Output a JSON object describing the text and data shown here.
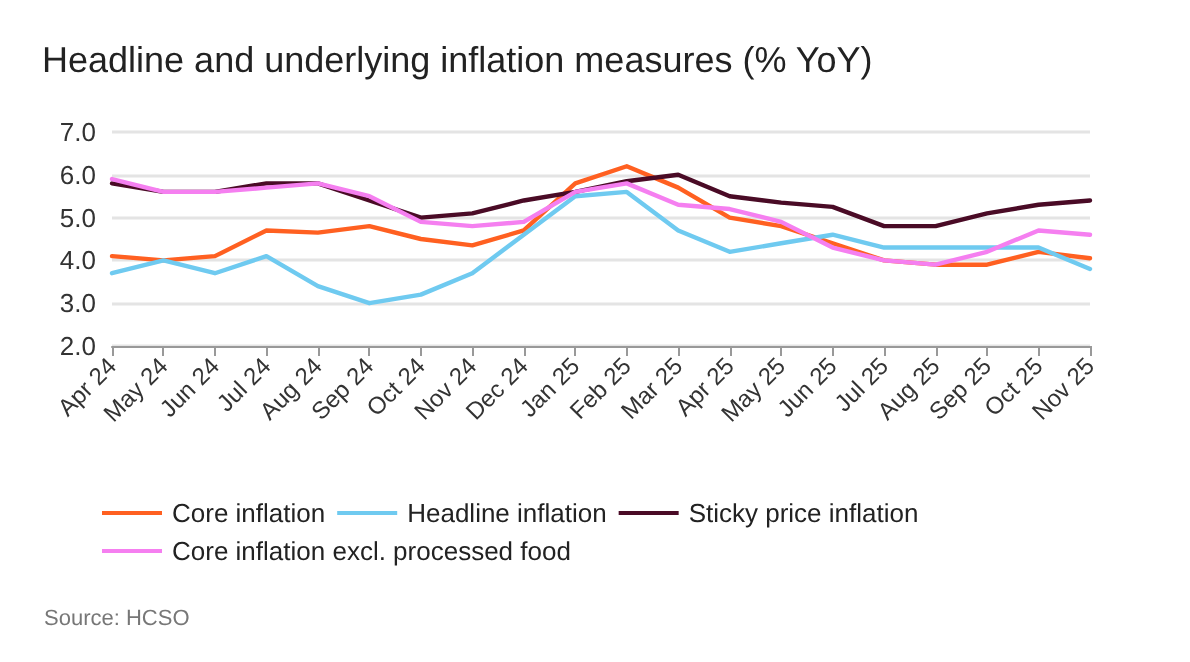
{
  "chart_data": {
    "type": "line",
    "title": "Headline and underlying inflation measures (% YoY)",
    "categories": [
      "Apr 24",
      "May 24",
      "Jun 24",
      "Jul 24",
      "Aug 24",
      "Sep 24",
      "Oct 24",
      "Nov 24",
      "Dec 24",
      "Jan 25",
      "Feb 25",
      "Mar 25",
      "Apr 25",
      "May 25",
      "Jun 25",
      "Jul 25",
      "Aug 25",
      "Sep 25",
      "Oct 25",
      "Nov 25"
    ],
    "series": [
      {
        "name": "Core inflation",
        "color": "#ff6021",
        "values": [
          4.1,
          4.0,
          4.1,
          4.7,
          4.65,
          4.8,
          4.5,
          4.35,
          4.7,
          5.8,
          6.2,
          5.7,
          5.0,
          4.8,
          4.4,
          4.0,
          3.9,
          3.9,
          4.2,
          4.05
        ]
      },
      {
        "name": "Headline inflation",
        "color": "#6fcaf0",
        "values": [
          3.7,
          4.0,
          3.7,
          4.1,
          3.4,
          3.0,
          3.2,
          3.7,
          4.6,
          5.5,
          5.6,
          4.7,
          4.2,
          4.4,
          4.6,
          4.3,
          4.3,
          4.3,
          4.3,
          3.8
        ]
      },
      {
        "name": "Sticky price inflation",
        "color": "#4a0b26",
        "values": [
          5.8,
          5.6,
          5.6,
          5.8,
          5.8,
          5.4,
          5.0,
          5.1,
          5.4,
          5.6,
          5.85,
          6.0,
          5.5,
          5.35,
          5.25,
          4.8,
          4.8,
          5.1,
          5.3,
          5.4
        ]
      },
      {
        "name": "Core inflation excl. processed food",
        "color": "#f57ff0",
        "values": [
          5.9,
          5.6,
          5.6,
          5.7,
          5.8,
          5.5,
          4.9,
          4.8,
          4.9,
          5.6,
          5.8,
          5.3,
          5.2,
          4.9,
          4.3,
          4.0,
          3.9,
          4.2,
          4.7,
          4.6
        ]
      }
    ],
    "ylim": [
      2.0,
      7.0
    ],
    "yticks": [
      {
        "value": 2,
        "label": "2.0"
      },
      {
        "value": 3,
        "label": "3.0"
      },
      {
        "value": 4,
        "label": "4.0"
      },
      {
        "value": 5,
        "label": "5.0"
      },
      {
        "value": 6,
        "label": "6.0"
      },
      {
        "value": 7,
        "label": "7.0"
      }
    ],
    "grid": "y",
    "legend": "bottom",
    "marker": "none",
    "line_style": "solid",
    "annotations": [
      "Source: HCSO"
    ]
  }
}
